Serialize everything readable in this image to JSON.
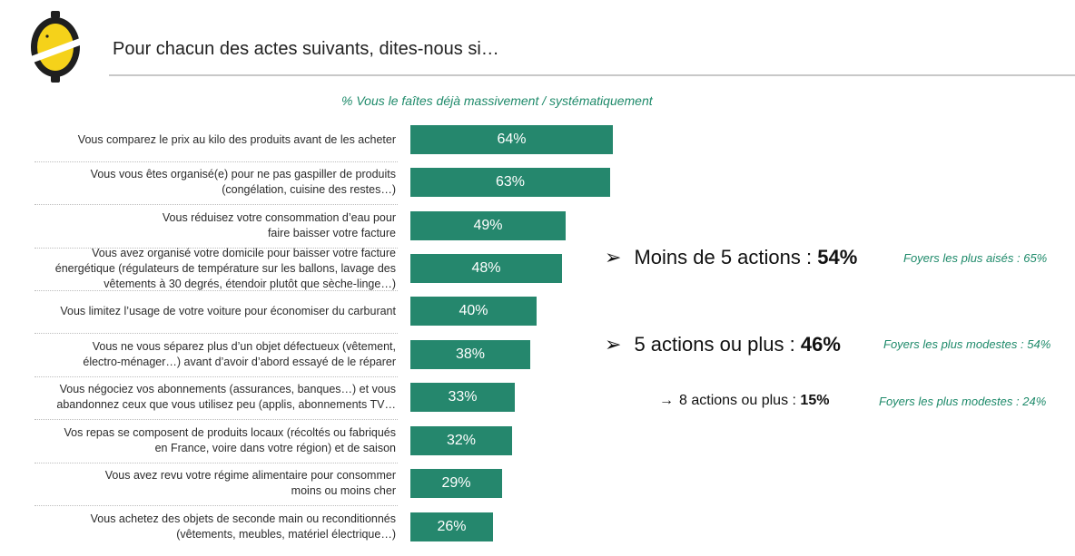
{
  "header": {
    "title": "Pour chacun des actes suivants, dites-nous si…"
  },
  "chart_data": {
    "type": "bar",
    "orientation": "horizontal",
    "title": "% Vous le faîtes déjà massivement / systématiquement",
    "categories": [
      [
        "Vous comparez le prix au kilo des produits avant de les acheter"
      ],
      [
        "Vous vous êtes organisé(e) pour ne pas gaspiller de produits",
        "(congélation, cuisine des restes…)"
      ],
      [
        "Vous réduisez votre consommation d’eau pour",
        "faire baisser votre facture"
      ],
      [
        "Vous avez organisé votre domicile pour baisser votre facture",
        "énergétique (régulateurs de température sur les ballons, lavage des",
        "vêtements à 30 degrés, étendoir plutôt que sèche-linge…)"
      ],
      [
        "Vous limitez l’usage de votre voiture pour économiser du carburant"
      ],
      [
        "Vous ne vous séparez plus d’un objet défectueux (vêtement,",
        "électro-ménager…) avant d’avoir d’abord essayé de le réparer"
      ],
      [
        "Vous négociez vos abonnements (assurances, banques…) et vous",
        "abandonnez ceux que vous utilisez peu (applis, abonnements TV…"
      ],
      [
        "Vos repas se composent de produits locaux (récoltés ou fabriqués",
        "en France, voire dans votre région) et de saison"
      ],
      [
        "Vous avez revu votre régime alimentaire pour consommer",
        "moins ou moins cher"
      ],
      [
        "Vous achetez des objets de seconde main ou reconditionnés",
        "(vêtements, meubles, matériel électrique…)"
      ]
    ],
    "values": [
      64,
      63,
      49,
      48,
      40,
      38,
      33,
      32,
      29,
      26
    ],
    "value_labels": [
      "64%",
      "63%",
      "49%",
      "48%",
      "40%",
      "38%",
      "33%",
      "32%",
      "29%",
      "26%"
    ],
    "bar_color": "#25876d",
    "xlim": [
      0,
      100
    ]
  },
  "summary": [
    {
      "arrow": "➢",
      "text": "Moins de 5 actions : ",
      "value": "54%",
      "note": "Foyers les plus aisés : 65%"
    },
    {
      "arrow": "➢",
      "text": "5 actions ou plus : ",
      "value": "46%",
      "note": "Foyers les plus modestes : 54%"
    },
    {
      "arrow": "→",
      "text": "8 actions ou plus : ",
      "value": "15%",
      "note": "Foyers les plus modestes : 24%"
    }
  ],
  "colors": {
    "accent": "#1e8a6a",
    "logo_yellow": "#f5d21a",
    "logo_dark": "#1f1f1f"
  }
}
